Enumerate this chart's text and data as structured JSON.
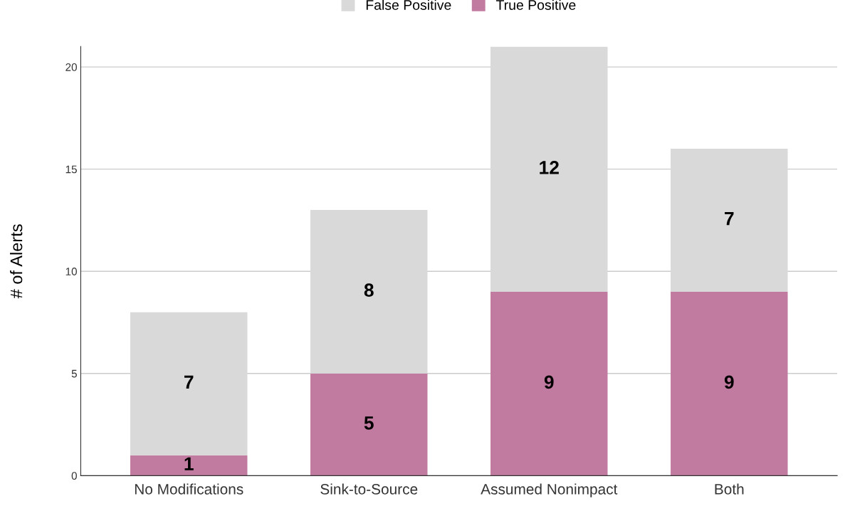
{
  "chart_data": {
    "type": "bar",
    "stacked": true,
    "ylabel": "# of Alerts",
    "categories": [
      "No Modifications",
      "Sink-to-Source",
      "Assumed Nonimpact",
      "Both"
    ],
    "series": [
      {
        "name": "True Positive",
        "color": "#c27ba0",
        "values": [
          1,
          5,
          9,
          9
        ]
      },
      {
        "name": "False Positive",
        "color": "#d9d9d9",
        "values": [
          7,
          8,
          12,
          7
        ]
      }
    ],
    "ylim": [
      0,
      21
    ],
    "yticks": [
      0,
      5,
      10,
      15,
      20
    ],
    "grid": "y",
    "legend": "top",
    "data_labels": true
  }
}
